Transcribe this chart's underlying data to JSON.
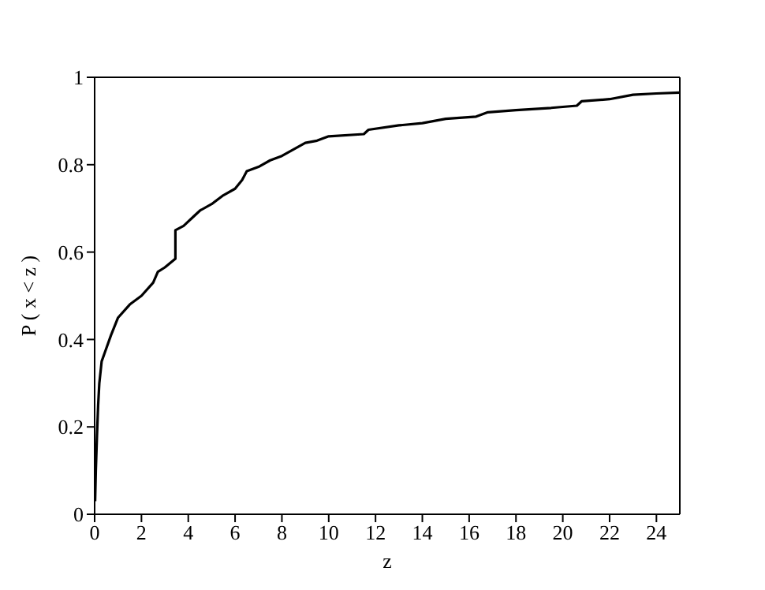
{
  "chart_data": {
    "type": "line",
    "xlabel": "z",
    "ylabel": "P ( x < z )",
    "xlim": [
      0,
      25
    ],
    "ylim": [
      0,
      1
    ],
    "xticks": [
      0,
      2,
      4,
      6,
      8,
      10,
      12,
      14,
      16,
      18,
      20,
      22,
      24
    ],
    "yticks": [
      0,
      0.2,
      0.4,
      0.6,
      0.8,
      1
    ],
    "grid": false,
    "legend": false,
    "marker": "none",
    "line_style": "solid",
    "x": [
      0.02,
      0.05,
      0.1,
      0.15,
      0.2,
      0.3,
      0.5,
      0.7,
      1.0,
      1.5,
      2.0,
      2.5,
      2.7,
      3.0,
      3.45,
      3.45,
      3.8,
      4.2,
      4.5,
      5.0,
      5.5,
      6.0,
      6.3,
      6.5,
      7.0,
      7.5,
      8.0,
      8.5,
      9.0,
      9.5,
      10,
      11.5,
      11.7,
      13,
      14,
      15,
      16.3,
      16.8,
      18,
      19.5,
      20.6,
      20.8,
      22,
      23,
      24,
      25
    ],
    "series": [
      {
        "color": "#000000",
        "values": [
          0.03,
          0.1,
          0.18,
          0.25,
          0.3,
          0.35,
          0.38,
          0.41,
          0.45,
          0.48,
          0.5,
          0.53,
          0.555,
          0.565,
          0.585,
          0.65,
          0.66,
          0.68,
          0.695,
          0.71,
          0.73,
          0.745,
          0.765,
          0.785,
          0.795,
          0.81,
          0.82,
          0.835,
          0.85,
          0.855,
          0.865,
          0.87,
          0.88,
          0.89,
          0.895,
          0.905,
          0.91,
          0.92,
          0.925,
          0.93,
          0.935,
          0.945,
          0.95,
          0.96,
          0.963,
          0.965
        ]
      }
    ]
  }
}
